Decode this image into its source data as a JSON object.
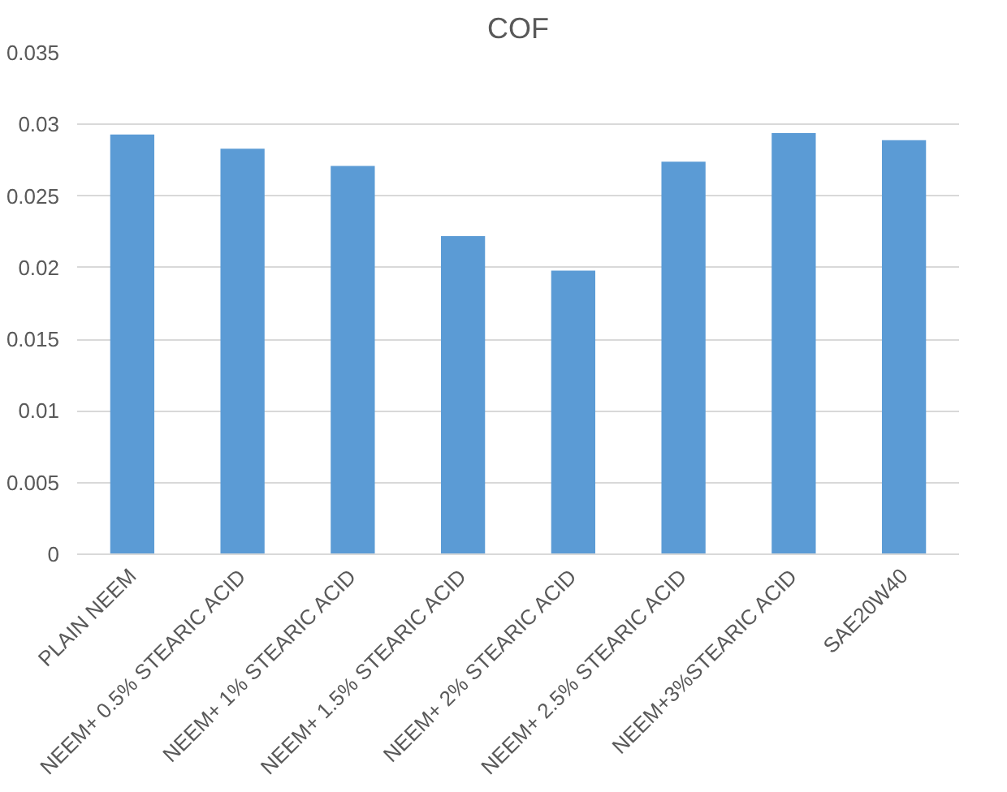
{
  "chart_data": {
    "type": "bar",
    "title": "COF",
    "categories": [
      "PLAIN NEEM",
      "NEEM+ 0.5% STEARIC ACID",
      "NEEM+ 1% STEARIC ACID",
      "NEEM+ 1.5% STEARIC ACID",
      "NEEM+ 2% STEARIC ACID",
      "NEEM+ 2.5% STEARIC ACID",
      "NEEM+3%STEARIC ACID",
      "SAE20W40"
    ],
    "values": [
      0.0293,
      0.0283,
      0.0271,
      0.0222,
      0.0198,
      0.0274,
      0.0294,
      0.0289
    ],
    "color": "#5b9bd5",
    "ylim": [
      0,
      0.035
    ],
    "yticks": [
      {
        "value": 0,
        "label": "0"
      },
      {
        "value": 0.005,
        "label": "0.005"
      },
      {
        "value": 0.01,
        "label": "0.01"
      },
      {
        "value": 0.015,
        "label": "0.015"
      },
      {
        "value": 0.02,
        "label": "0.02"
      },
      {
        "value": 0.025,
        "label": "0.025"
      },
      {
        "value": 0.03,
        "label": "0.03"
      },
      {
        "value": 0.035,
        "label": "0.035"
      }
    ],
    "grid": "y"
  }
}
